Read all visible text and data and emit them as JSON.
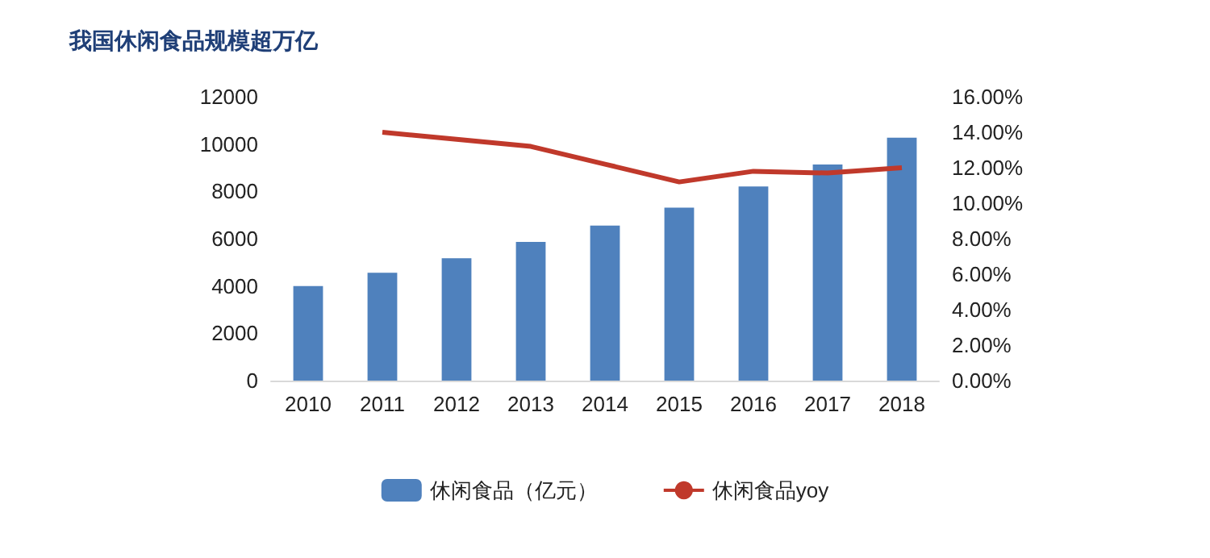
{
  "chart_data": {
    "type": "bar",
    "title": "我国休闲食品规模超万亿",
    "categories": [
      "2010",
      "2011",
      "2012",
      "2013",
      "2014",
      "2015",
      "2016",
      "2017",
      "2018"
    ],
    "series": [
      {
        "name": "休闲食品（亿元）",
        "color": "#4f81bd",
        "values": [
          4000,
          4560,
          5170,
          5860,
          6550,
          7310,
          8210,
          9140,
          10270
        ]
      },
      {
        "name": "休闲食品yoy",
        "type": "line",
        "axis": "y2",
        "color": "#c0392b",
        "marker": "none",
        "values": [
          null,
          14.0,
          13.6,
          13.2,
          12.2,
          11.2,
          11.8,
          11.7,
          12.0
        ]
      }
    ],
    "ylim": [
      0,
      12000
    ],
    "yticks": [
      0,
      2000,
      4000,
      6000,
      8000,
      10000,
      12000
    ],
    "y2lim": [
      0,
      16
    ],
    "y2ticks": [
      {
        "value": 0,
        "label": "0.00%"
      },
      {
        "value": 2,
        "label": "2.00%"
      },
      {
        "value": 4,
        "label": "4.00%"
      },
      {
        "value": 6,
        "label": "6.00%"
      },
      {
        "value": 8,
        "label": "8.00%"
      },
      {
        "value": 10,
        "label": "10.00%"
      },
      {
        "value": 12,
        "label": "12.00%"
      },
      {
        "value": 14,
        "label": "14.00%"
      },
      {
        "value": 16,
        "label": "16.00%"
      }
    ],
    "grid": false,
    "legend": "bottom"
  }
}
